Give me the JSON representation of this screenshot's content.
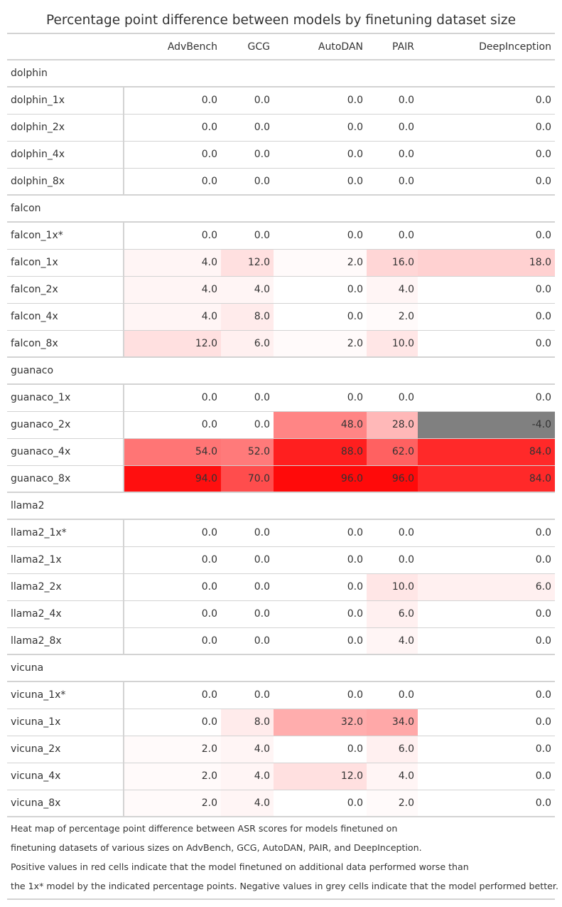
{
  "chart_data": {
    "type": "table",
    "title": "Percentage point difference between models by finetuning dataset size",
    "columns": [
      "AdvBench",
      "GCG",
      "AutoDAN",
      "PAIR",
      "DeepInception"
    ],
    "groups": [
      {
        "name": "dolphin",
        "rows": [
          {
            "label": "dolphin_1x",
            "values": [
              0,
              0,
              0,
              0,
              0
            ]
          },
          {
            "label": "dolphin_2x",
            "values": [
              0,
              0,
              0,
              0,
              0
            ]
          },
          {
            "label": "dolphin_4x",
            "values": [
              0,
              0,
              0,
              0,
              0
            ]
          },
          {
            "label": "dolphin_8x",
            "values": [
              0,
              0,
              0,
              0,
              0
            ]
          }
        ]
      },
      {
        "name": "falcon",
        "rows": [
          {
            "label": "falcon_1x*",
            "values": [
              0,
              0,
              0,
              0,
              0
            ]
          },
          {
            "label": "falcon_1x",
            "values": [
              4,
              12,
              2,
              16,
              18
            ]
          },
          {
            "label": "falcon_2x",
            "values": [
              4,
              4,
              0,
              4,
              0
            ]
          },
          {
            "label": "falcon_4x",
            "values": [
              4,
              8,
              0,
              2,
              0
            ]
          },
          {
            "label": "falcon_8x",
            "values": [
              12,
              6,
              2,
              10,
              0
            ]
          }
        ]
      },
      {
        "name": "guanaco",
        "rows": [
          {
            "label": "guanaco_1x",
            "values": [
              0,
              0,
              0,
              0,
              0
            ]
          },
          {
            "label": "guanaco_2x",
            "values": [
              0,
              0,
              48,
              28,
              -4
            ]
          },
          {
            "label": "guanaco_4x",
            "values": [
              54,
              52,
              88,
              62,
              84
            ]
          },
          {
            "label": "guanaco_8x",
            "values": [
              94,
              70,
              96,
              96,
              84
            ]
          }
        ]
      },
      {
        "name": "llama2",
        "rows": [
          {
            "label": "llama2_1x*",
            "values": [
              0,
              0,
              0,
              0,
              0
            ]
          },
          {
            "label": "llama2_1x",
            "values": [
              0,
              0,
              0,
              0,
              0
            ]
          },
          {
            "label": "llama2_2x",
            "values": [
              0,
              0,
              0,
              10,
              6
            ]
          },
          {
            "label": "llama2_4x",
            "values": [
              0,
              0,
              0,
              6,
              0
            ]
          },
          {
            "label": "llama2_8x",
            "values": [
              0,
              0,
              0,
              4,
              0
            ]
          }
        ]
      },
      {
        "name": "vicuna",
        "rows": [
          {
            "label": "vicuna_1x*",
            "values": [
              0,
              0,
              0,
              0,
              0
            ]
          },
          {
            "label": "vicuna_1x",
            "values": [
              0,
              8,
              32,
              34,
              0
            ]
          },
          {
            "label": "vicuna_2x",
            "values": [
              2,
              4,
              0,
              6,
              0
            ]
          },
          {
            "label": "vicuna_4x",
            "values": [
              2,
              4,
              12,
              4,
              0
            ]
          },
          {
            "label": "vicuna_8x",
            "values": [
              2,
              4,
              0,
              2,
              0
            ]
          }
        ]
      }
    ],
    "color_scale": {
      "positive_max": "#ff0000",
      "low": "#ffffff",
      "negative": "#808080",
      "max_value": 100
    },
    "footnotes": [
      "Heat map of percentage point difference between ASR scores for models finetuned on",
      "finetuning datasets of various sizes on AdvBench, GCG, AutoDAN, PAIR, and DeepInception.",
      "Positive values in red cells indicate that the model finetuned on additional data performed worse than",
      "the 1x* model by the indicated percentage points. Negative values in grey cells indicate that the model performed better."
    ]
  }
}
